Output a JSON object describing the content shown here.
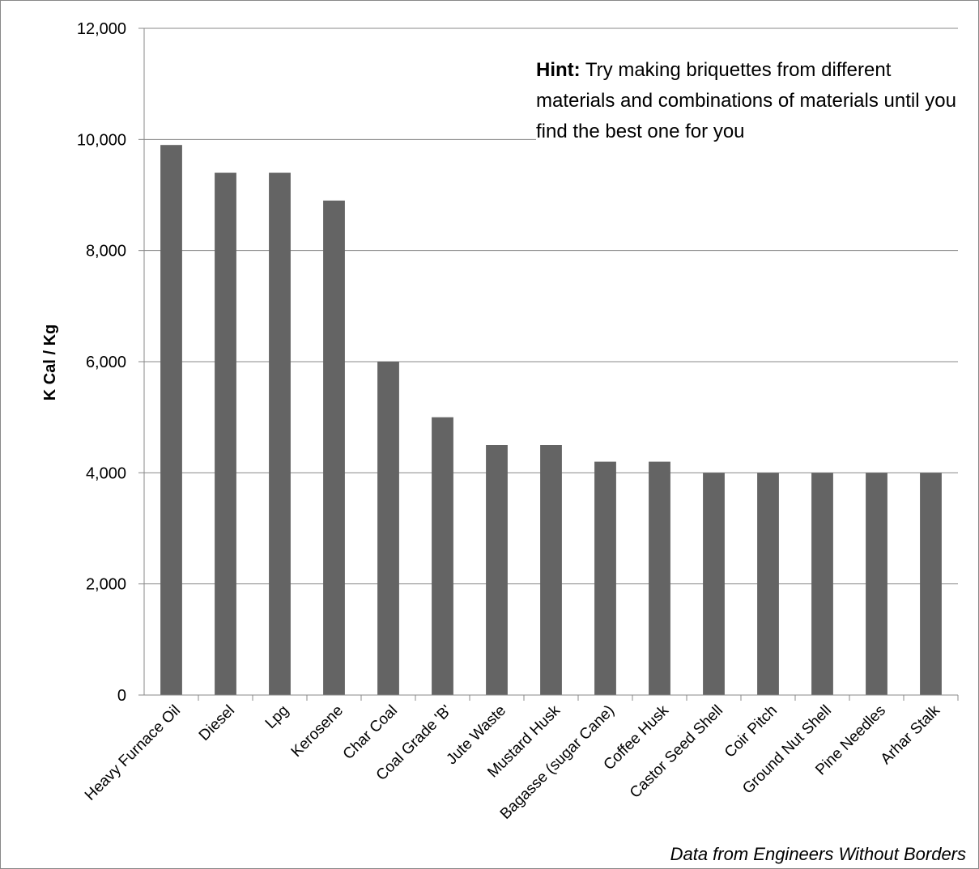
{
  "chart_data": {
    "type": "bar",
    "categories": [
      "Heavy Furnace Oil",
      "Diesel",
      "Lpg",
      "Kerosene",
      "Char Coal",
      "Coal Grade 'B'",
      "Jute Waste",
      "Mustard Husk",
      "Bagasse (sugar Cane)",
      "Coffee Husk",
      "Castor Seed Shell",
      "Coir Pitch",
      "Ground Nut Shell",
      "Pine Needles",
      "Arhar Stalk"
    ],
    "values": [
      9900,
      9400,
      9400,
      8900,
      6000,
      5000,
      4500,
      4500,
      4200,
      4200,
      4000,
      4000,
      4000,
      4000,
      4000
    ],
    "ylabel": "K Cal / Kg",
    "ylim": [
      0,
      12000
    ],
    "yticks": [
      "0",
      "2,000",
      "4,000",
      "6,000",
      "8,000",
      "10,000",
      "12,000"
    ],
    "grid": true,
    "bar_color": "#646464",
    "annotation": {
      "bold": "Hint:",
      "text": " Try making briquettes from different materials and combinations of materials until you find the best one for you"
    },
    "source": "Data from Engineers Without Borders"
  }
}
